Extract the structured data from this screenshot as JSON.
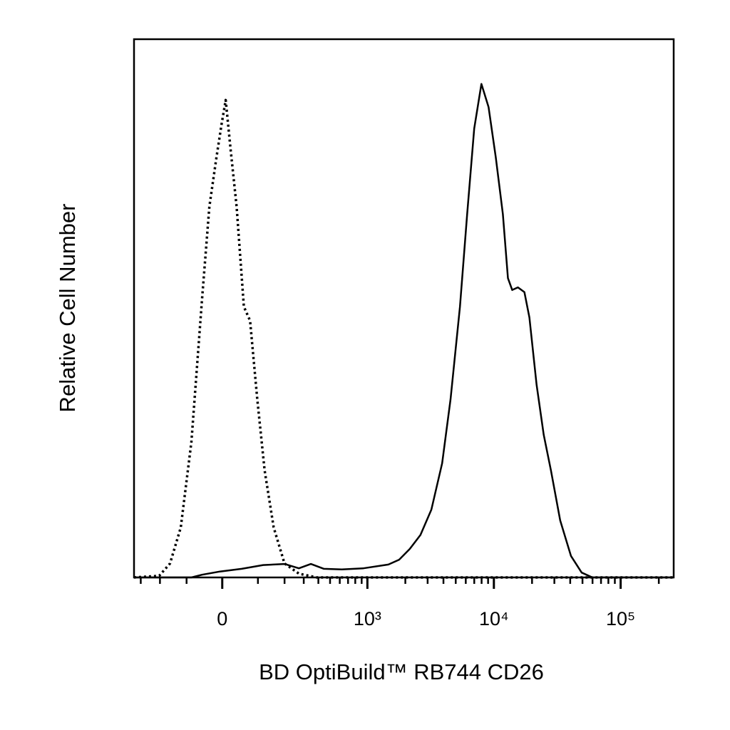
{
  "chart_data": {
    "type": "line",
    "x_label": "BD OptiBuild™ RB744 CD26",
    "y_label": "Relative Cell Number",
    "xscale": "biexponential",
    "xlim": [
      -343,
      262000
    ],
    "ylim": [
      0,
      100
    ],
    "xticks": [
      0,
      {
        "value": 1000,
        "label": "10³"
      },
      {
        "value": 10000,
        "label": "10⁴"
      },
      {
        "value": 100000,
        "label": "10⁵"
      }
    ],
    "xminorticks": [
      -300,
      -200,
      -100,
      100,
      200,
      300,
      400,
      500,
      600,
      700,
      800,
      900,
      2000,
      3000,
      4000,
      5000,
      6000,
      7000,
      8000,
      9000,
      20000,
      30000,
      40000,
      50000,
      60000,
      70000,
      80000,
      90000,
      200000
    ],
    "series": [
      {
        "color": "#000000",
        "style": "dotted",
        "x": [
          -343,
          -203,
          -158,
          -119,
          -85,
          -54,
          -34,
          -15,
          -2,
          9,
          22,
          38,
          58,
          76,
          98,
          122,
          155,
          200,
          272,
          387,
          2995,
          262000
        ],
        "values": [
          0,
          0.3,
          2.6,
          9.3,
          25.2,
          51.7,
          68.9,
          78.1,
          84.1,
          88.7,
          79.5,
          68.9,
          50.3,
          47.7,
          33.1,
          19.9,
          9.3,
          2.6,
          0.7,
          0,
          0,
          0
        ]
      },
      {
        "color": "#000000",
        "style": "solid",
        "x": [
          -343,
          -85,
          -54,
          -6,
          52,
          117,
          200,
          272,
          346,
          445,
          624,
          927,
          1469,
          1786,
          2169,
          2635,
          3211,
          3903,
          4551,
          5400,
          6150,
          7000,
          7977,
          9075,
          10340,
          11780,
          12900,
          13950,
          15480,
          17410,
          19070,
          21720,
          24740,
          28170,
          33350,
          40540,
          49250,
          59900,
          262000
        ],
        "values": [
          0,
          0,
          0.5,
          1.1,
          1.6,
          2.3,
          2.5,
          1.7,
          2.5,
          1.6,
          1.5,
          1.7,
          2.4,
          3.3,
          5.3,
          7.9,
          12.6,
          21.2,
          33.1,
          50.3,
          67.5,
          83.4,
          91.7,
          87.4,
          78.1,
          67.5,
          55.6,
          53.4,
          53.9,
          53.0,
          48.3,
          35.8,
          26.5,
          19.9,
          10.6,
          4.0,
          0.9,
          0,
          0
        ]
      }
    ]
  }
}
